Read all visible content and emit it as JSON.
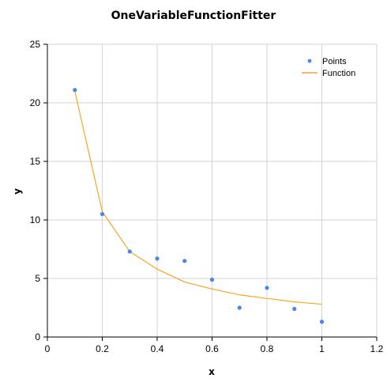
{
  "chart_data": {
    "type": "scatter",
    "title": "OneVariableFunctionFitter",
    "xlabel": "x",
    "ylabel": "y",
    "xlim": [
      0,
      1.2
    ],
    "ylim": [
      0,
      25
    ],
    "x_ticks": [
      "0",
      "0.2",
      "0.4",
      "0.6",
      "0.8",
      "1",
      "1.2"
    ],
    "y_ticks": [
      "0",
      "5",
      "10",
      "15",
      "20",
      "25"
    ],
    "grid": true,
    "legend_position": "top-right",
    "series": [
      {
        "name": "Points",
        "kind": "scatter",
        "color": "#4a86e8",
        "x": [
          0.1,
          0.2,
          0.3,
          0.4,
          0.5,
          0.6,
          0.7,
          0.8,
          0.9,
          1.0
        ],
        "y": [
          21.1,
          10.5,
          7.3,
          6.7,
          6.5,
          4.9,
          2.5,
          4.2,
          2.4,
          1.3
        ]
      },
      {
        "name": "Function",
        "kind": "line",
        "color": "#f5a623",
        "x": [
          0.1,
          0.2,
          0.3,
          0.4,
          0.5,
          0.6,
          0.7,
          0.8,
          0.9,
          1.0
        ],
        "y": [
          21.0,
          10.7,
          7.3,
          5.8,
          4.7,
          4.1,
          3.6,
          3.3,
          3.0,
          2.8
        ]
      }
    ]
  }
}
